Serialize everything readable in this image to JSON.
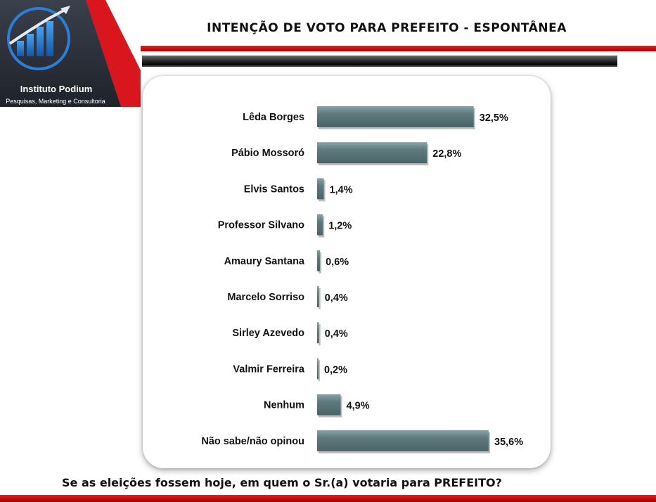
{
  "logo": {
    "name": "Instituto Podium",
    "tagline": "Pesquisas, Marketing e Consultoria",
    "icon": "bar-chart-arrow-icon"
  },
  "header": {
    "title": "INTENÇÃO DE VOTO PARA PREFEITO - ESPONTÂNEA"
  },
  "footer": {
    "question": "Se as eleições fossem hoje, em quem o Sr.(a) votaria para PREFEITO?"
  },
  "colors": {
    "bar": "#5f7b7e",
    "accent_red": "#d9161d",
    "logo_bg": "#2a2f3a"
  },
  "chart_data": {
    "type": "bar",
    "orientation": "horizontal",
    "categories": [
      "Lêda Borges",
      "Pábio Mossoró",
      "Elvis Santos",
      "Professor Silvano",
      "Amaury Santana",
      "Marcelo Sorriso",
      "Sirley Azevedo",
      "Valmir Ferreira",
      "Nenhum",
      "Não sabe/não opinou"
    ],
    "values": [
      32.5,
      22.8,
      1.4,
      1.2,
      0.6,
      0.4,
      0.4,
      0.2,
      4.9,
      35.6
    ],
    "value_labels": [
      "32,5%",
      "22,8%",
      "1,4%",
      "1,2%",
      "0,6%",
      "0,4%",
      "0,4%",
      "0,2%",
      "4,9%",
      "35,6%"
    ],
    "xlim": [
      0,
      35.6
    ],
    "grid": false,
    "legend": false
  }
}
